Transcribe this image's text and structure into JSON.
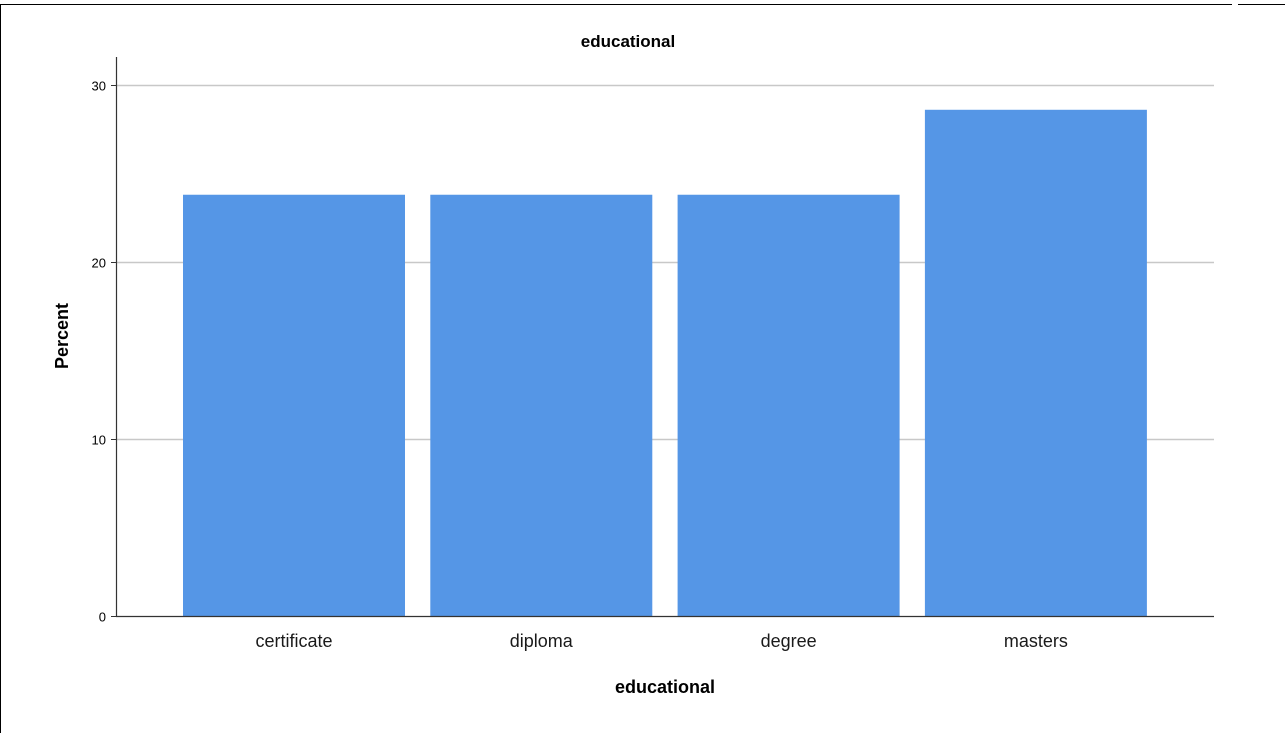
{
  "chart_data": {
    "type": "bar",
    "title": "educational",
    "xlabel": "educational",
    "ylabel": "Percent",
    "categories": [
      "certificate",
      "diploma",
      "degree",
      "masters"
    ],
    "values": [
      23.8,
      23.8,
      23.8,
      28.6
    ],
    "ylim": [
      0,
      31.5
    ],
    "yticks": [
      0,
      10,
      20,
      30
    ],
    "grid": true,
    "legend": "none",
    "bar_color": "#5596e6",
    "grid_color": "#c8c8c8"
  }
}
